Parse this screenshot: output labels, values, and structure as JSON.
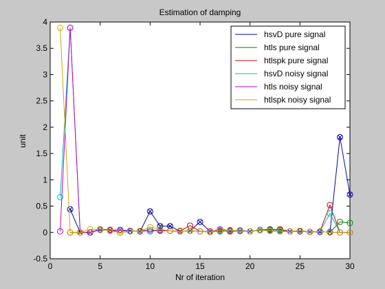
{
  "chart_data": {
    "type": "line",
    "title": "Estimation of damping",
    "xlabel": "Nr of iteration",
    "ylabel": "unit",
    "xlim": [
      0,
      30
    ],
    "ylim": [
      -0.5,
      4
    ],
    "xticks": [
      0,
      5,
      10,
      15,
      20,
      25,
      30
    ],
    "xtick_labels": [
      "0",
      "5",
      "10",
      "15",
      "20",
      "25",
      "30"
    ],
    "yticks": [
      -0.5,
      0,
      0.5,
      1,
      1.5,
      2,
      2.5,
      3,
      3.5,
      4
    ],
    "ytick_labels": [
      "-0.5",
      "0",
      "0.5",
      "1",
      "1.5",
      "2",
      "2.5",
      "3",
      "3.5",
      "4"
    ],
    "grid": false,
    "legend_position": "top-right",
    "x": [
      1,
      2,
      3,
      4,
      5,
      6,
      7,
      8,
      9,
      10,
      11,
      12,
      13,
      14,
      15,
      16,
      17,
      18,
      19,
      20,
      21,
      22,
      23,
      24,
      25,
      26,
      27,
      28,
      29,
      30
    ],
    "series": [
      {
        "name": "hsvD pure signal",
        "color": "#0000aa",
        "marker": "circle-x",
        "values": [
          null,
          0.44,
          0.0,
          0.0,
          0.05,
          0.04,
          0.05,
          0.03,
          0.02,
          0.4,
          0.12,
          0.12,
          0.02,
          0.03,
          0.2,
          0.02,
          0.03,
          0.02,
          0.03,
          0.02,
          0.05,
          0.03,
          0.02,
          0.02,
          0.02,
          0.01,
          0.01,
          0.01,
          1.81,
          0.72
        ]
      },
      {
        "name": "htls pure signal",
        "color": "#008000",
        "marker": "circle",
        "values": [
          null,
          0.0,
          0.0,
          0.0,
          0.06,
          0.04,
          0.0,
          0.02,
          0.03,
          0.02,
          0.04,
          0.03,
          0.02,
          0.03,
          0.02,
          0.01,
          0.02,
          0.03,
          0.04,
          0.02,
          0.05,
          0.06,
          0.05,
          0.02,
          0.03,
          0.01,
          0.02,
          0.0,
          0.2,
          0.18
        ]
      },
      {
        "name": "htlspk pure signal",
        "color": "#cc0000",
        "marker": "circle",
        "values": [
          null,
          0.0,
          0.0,
          0.0,
          0.06,
          0.05,
          0.0,
          0.02,
          0.03,
          0.02,
          0.05,
          0.03,
          0.03,
          0.13,
          0.02,
          0.02,
          0.04,
          0.02,
          0.03,
          0.02,
          0.04,
          0.05,
          0.06,
          0.02,
          0.03,
          0.01,
          0.02,
          0.52,
          0.0,
          0.0
        ]
      },
      {
        "name": "hsvD noisy signal",
        "color": "#00bbbb",
        "marker": "circle",
        "values": [
          0.67,
          3.89,
          0.0,
          0.0,
          0.06,
          0.04,
          0.05,
          0.02,
          0.03,
          0.02,
          0.04,
          0.03,
          0.02,
          0.03,
          0.02,
          0.01,
          0.02,
          0.03,
          0.04,
          0.02,
          0.05,
          0.04,
          0.03,
          0.02,
          0.03,
          0.01,
          0.02,
          0.36,
          0.0,
          0.0
        ]
      },
      {
        "name": "htls noisy signal",
        "color": "#bb00bb",
        "marker": "circle",
        "values": [
          0.02,
          3.89,
          0.0,
          0.0,
          0.06,
          0.04,
          0.04,
          0.02,
          0.03,
          0.05,
          0.03,
          0.03,
          0.02,
          0.03,
          0.02,
          0.01,
          0.06,
          0.04,
          0.03,
          0.02,
          0.04,
          0.03,
          0.02,
          0.02,
          0.03,
          0.01,
          0.02,
          0.0,
          0.0,
          0.0
        ]
      },
      {
        "name": "htlspk noisy signal",
        "color": "#ccaa00",
        "marker": "circle",
        "values": [
          3.89,
          0.0,
          0.0,
          0.06,
          0.06,
          0.03,
          0.0,
          0.02,
          0.03,
          0.1,
          0.06,
          0.03,
          0.02,
          0.03,
          0.02,
          0.01,
          0.04,
          0.05,
          0.02,
          0.02,
          0.04,
          0.03,
          0.02,
          0.02,
          0.03,
          0.01,
          0.02,
          0.0,
          0.0,
          0.0
        ]
      }
    ]
  }
}
